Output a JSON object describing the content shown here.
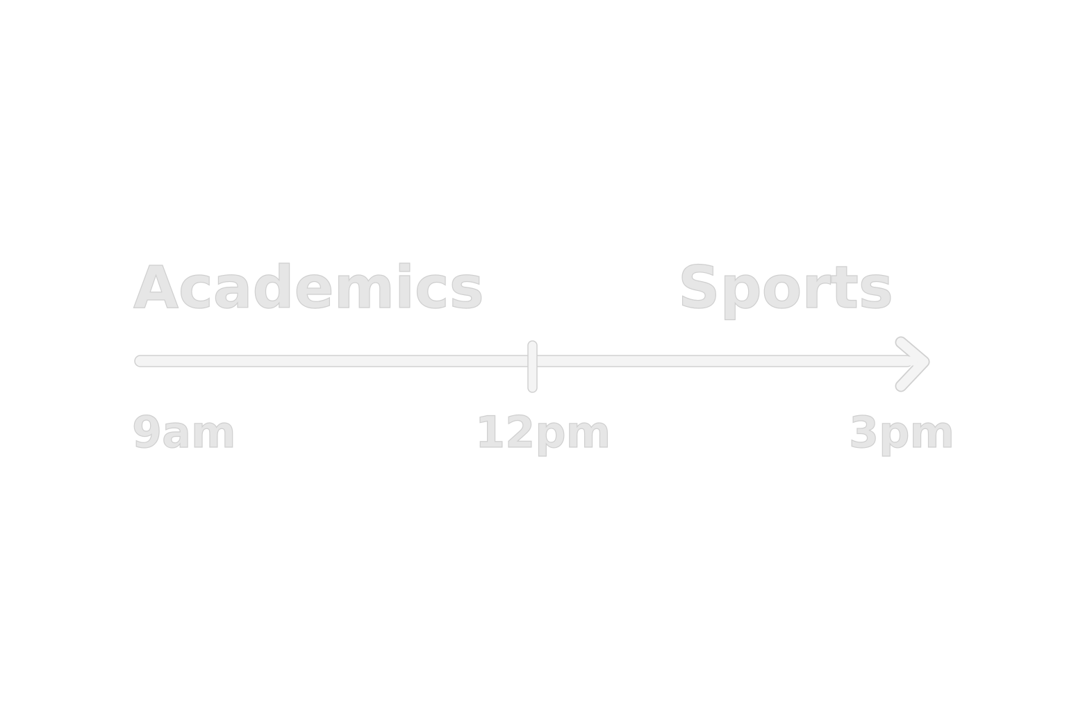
{
  "timeline": {
    "phases": [
      {
        "label": "Academics"
      },
      {
        "label": "Sports"
      }
    ],
    "times": [
      {
        "label": "9am"
      },
      {
        "label": "12pm"
      },
      {
        "label": "3pm"
      }
    ],
    "colors": {
      "fill": "#f4f4f4",
      "stroke": "#d0d0d0",
      "text_fill": "#e6e6e6"
    }
  }
}
